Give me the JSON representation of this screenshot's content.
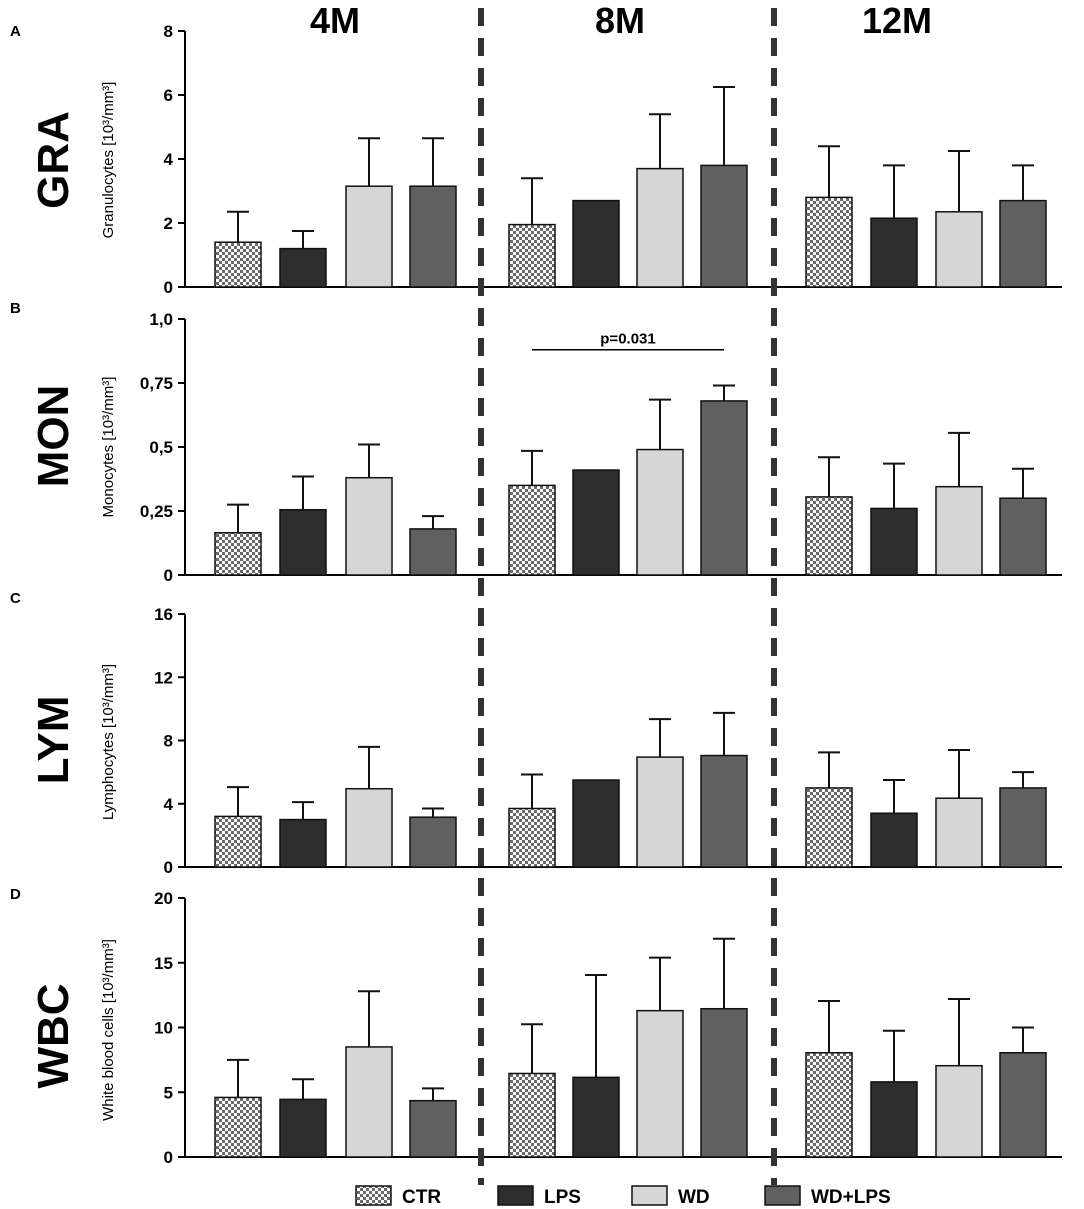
{
  "figure": {
    "periods": [
      "4M",
      "8M",
      "12M"
    ],
    "colors": {
      "CTR": "#8a8a8a",
      "LPS": "#2e2e2e",
      "WD": "#d6d6d6",
      "WD+LPS": "#606060"
    }
  },
  "legend": [
    {
      "key": "CTR",
      "label": "CTR"
    },
    {
      "key": "LPS",
      "label": "LPS"
    },
    {
      "key": "WD",
      "label": "WD"
    },
    {
      "key": "WD+LPS",
      "label": "WD+LPS"
    }
  ],
  "chart_data": [
    {
      "panel": "A",
      "row_label": "GRA",
      "type": "bar",
      "ylabel": "Granulocytes [10³/mm³]",
      "ylim": [
        0,
        8
      ],
      "yticks": [
        0,
        2,
        4,
        6,
        8
      ],
      "ytick_labels": [
        "0",
        "2",
        "4",
        "6",
        "8"
      ],
      "categories": [
        "4M",
        "8M",
        "12M"
      ],
      "series": [
        {
          "name": "CTR",
          "values": [
            1.4,
            1.95,
            2.8
          ],
          "errors": [
            0.95,
            1.45,
            1.6
          ]
        },
        {
          "name": "LPS",
          "values": [
            1.2,
            2.7,
            2.15
          ],
          "errors": [
            0.55,
            0,
            1.65
          ]
        },
        {
          "name": "WD",
          "values": [
            3.15,
            3.7,
            2.35
          ],
          "errors": [
            1.5,
            1.7,
            1.9
          ]
        },
        {
          "name": "WD+LPS",
          "values": [
            3.15,
            3.8,
            2.7
          ],
          "errors": [
            1.5,
            2.45,
            1.1
          ]
        }
      ]
    },
    {
      "panel": "B",
      "row_label": "MON",
      "type": "bar",
      "ylabel": "Monocytes [10³/mm³]",
      "ylim": [
        0,
        1.0
      ],
      "yticks": [
        0,
        0.25,
        0.5,
        0.75,
        1.0
      ],
      "ytick_labels": [
        "0",
        "0,25",
        "0,5",
        "0,75",
        "1,0"
      ],
      "categories": [
        "4M",
        "8M",
        "12M"
      ],
      "series": [
        {
          "name": "CTR",
          "values": [
            0.165,
            0.35,
            0.305
          ],
          "errors": [
            0.11,
            0.135,
            0.155
          ]
        },
        {
          "name": "LPS",
          "values": [
            0.255,
            0.41,
            0.26
          ],
          "errors": [
            0.13,
            0,
            0.175
          ]
        },
        {
          "name": "WD",
          "values": [
            0.38,
            0.49,
            0.345
          ],
          "errors": [
            0.13,
            0.195,
            0.21
          ]
        },
        {
          "name": "WD+LPS",
          "values": [
            0.18,
            0.68,
            0.3
          ],
          "errors": [
            0.05,
            0.06,
            0.115
          ]
        }
      ],
      "annotation": {
        "text": "p=0.031",
        "from_series": "CTR",
        "to_series": "WD+LPS",
        "period": "8M",
        "value": 0.88
      }
    },
    {
      "panel": "C",
      "row_label": "LYM",
      "type": "bar",
      "ylabel": "Lymphocytes [10³/mm³]",
      "ylim": [
        0,
        16
      ],
      "yticks": [
        0,
        4,
        8,
        12,
        16
      ],
      "ytick_labels": [
        "0",
        "4",
        "8",
        "12",
        "16"
      ],
      "categories": [
        "4M",
        "8M",
        "12M"
      ],
      "series": [
        {
          "name": "CTR",
          "values": [
            3.2,
            3.7,
            5.0
          ],
          "errors": [
            1.85,
            2.15,
            2.25
          ]
        },
        {
          "name": "LPS",
          "values": [
            3.0,
            5.5,
            3.4
          ],
          "errors": [
            1.1,
            0,
            2.1
          ]
        },
        {
          "name": "WD",
          "values": [
            4.95,
            6.95,
            4.35
          ],
          "errors": [
            2.65,
            2.4,
            3.05
          ]
        },
        {
          "name": "WD+LPS",
          "values": [
            3.15,
            7.05,
            5.0
          ],
          "errors": [
            0.55,
            2.7,
            1.0
          ]
        }
      ]
    },
    {
      "panel": "D",
      "row_label": "WBC",
      "type": "bar",
      "ylabel": "White blood cells [10³/mm³]",
      "ylim": [
        0,
        20
      ],
      "yticks": [
        0,
        5,
        10,
        15,
        20
      ],
      "ytick_labels": [
        "0",
        "5",
        "10",
        "15",
        "20"
      ],
      "categories": [
        "4M",
        "8M",
        "12M"
      ],
      "series": [
        {
          "name": "CTR",
          "values": [
            4.6,
            6.45,
            8.05
          ],
          "errors": [
            2.9,
            3.8,
            4.0
          ]
        },
        {
          "name": "LPS",
          "values": [
            4.45,
            6.15,
            5.8
          ],
          "errors": [
            1.55,
            7.9,
            3.95
          ]
        },
        {
          "name": "WD",
          "values": [
            8.5,
            11.3,
            7.05
          ],
          "errors": [
            4.3,
            4.1,
            5.15
          ]
        },
        {
          "name": "WD+LPS",
          "values": [
            4.35,
            11.45,
            8.05
          ],
          "errors": [
            0.95,
            5.4,
            1.95
          ]
        }
      ]
    }
  ]
}
